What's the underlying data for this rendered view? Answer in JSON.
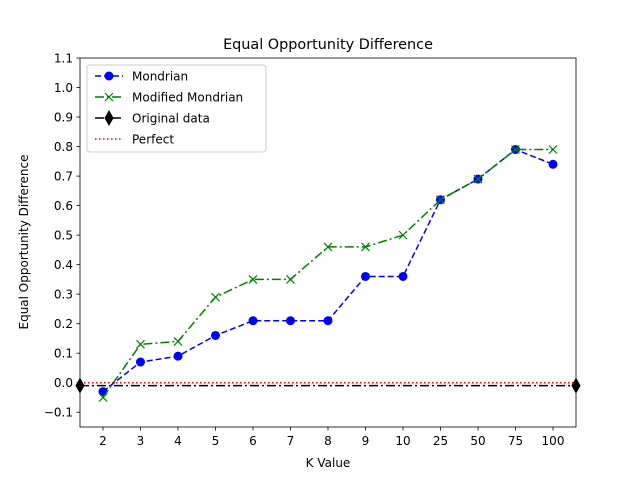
{
  "chart_data": {
    "type": "line",
    "title": "Equal Opportunity Difference",
    "xlabel": "K Value",
    "ylabel": "Equal Opportunity Difference",
    "categories": [
      "2",
      "3",
      "4",
      "5",
      "6",
      "7",
      "8",
      "9",
      "10",
      "25",
      "50",
      "75",
      "100"
    ],
    "ylim": [
      -0.15,
      1.1
    ],
    "yticks": [
      -0.1,
      0.0,
      0.1,
      0.2,
      0.3,
      0.4,
      0.5,
      0.6,
      0.7,
      0.8,
      0.9,
      1.0,
      1.1
    ],
    "ytick_labels": [
      "−0.1",
      "0.0",
      "0.1",
      "0.2",
      "0.3",
      "0.4",
      "0.5",
      "0.6",
      "0.7",
      "0.8",
      "0.9",
      "1.0",
      "1.1"
    ],
    "grid": false,
    "legend_position": "top-left",
    "series": [
      {
        "name": "Mondrian",
        "color": "#0000ff",
        "linestyle": "dashed",
        "marker": "circle",
        "values": [
          -0.03,
          0.07,
          0.09,
          0.16,
          0.21,
          0.21,
          0.21,
          0.36,
          0.36,
          0.62,
          0.69,
          0.79,
          0.74
        ]
      },
      {
        "name": "Modified Mondrian",
        "color": "#008000",
        "linestyle": "dashdot",
        "marker": "x",
        "values": [
          -0.05,
          0.13,
          0.14,
          0.29,
          0.35,
          0.35,
          0.46,
          0.46,
          0.5,
          0.62,
          0.69,
          0.79,
          0.79
        ]
      },
      {
        "name": "Original data",
        "color": "#000000",
        "linestyle": "dashdot",
        "marker": "diamond",
        "value": -0.01
      },
      {
        "name": "Perfect",
        "color": "#ff0000",
        "linestyle": "dotted",
        "marker": "none",
        "value": 0.0
      }
    ]
  }
}
